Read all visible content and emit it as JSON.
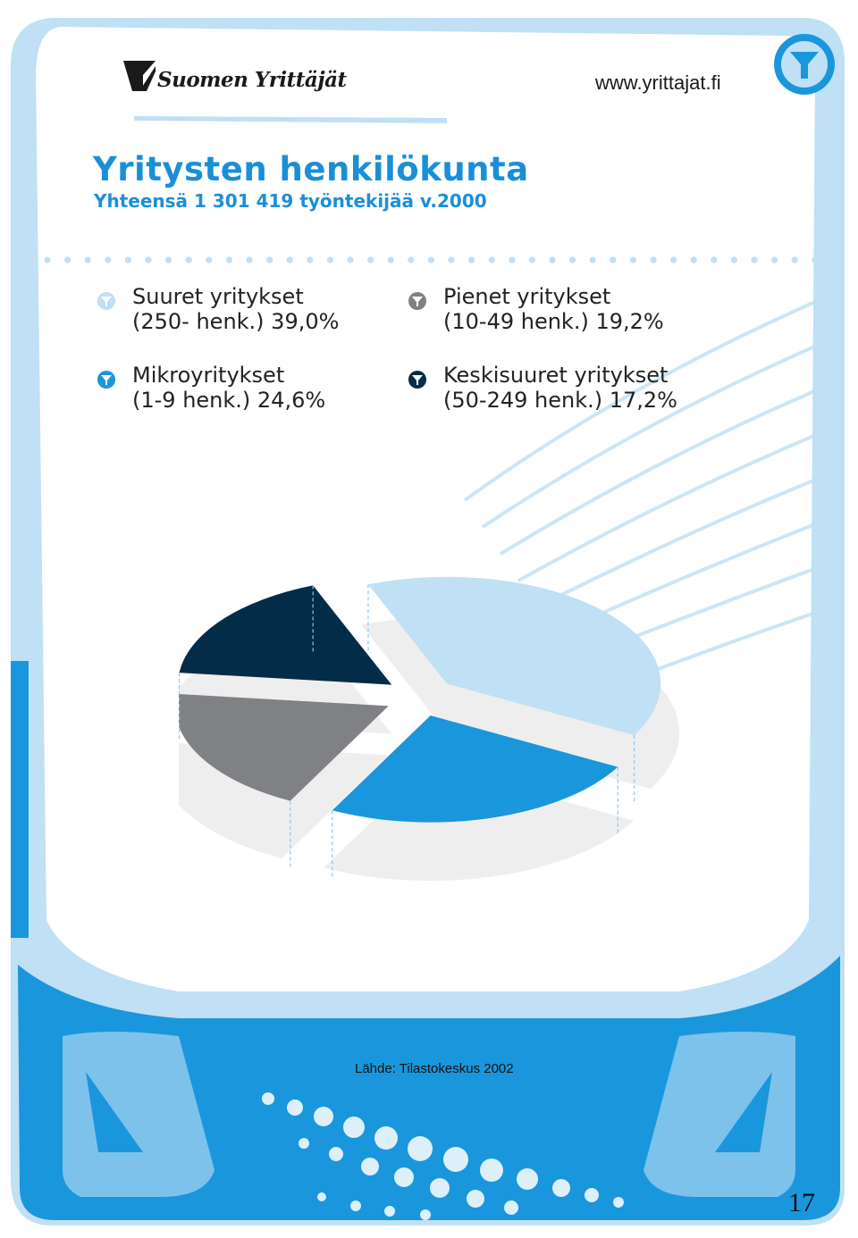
{
  "header": {
    "brand": "Suomen Yrittäjät",
    "website": "www.yrittajat.fi"
  },
  "title": "Yritysten henkilökunta",
  "subtitle": "Yhteensä 1 301 419 työntekijää v.2000",
  "legend": [
    {
      "line1": "Suuret yritykset",
      "line2": "(250- henk.) 39,0%",
      "color": "#bfe0f5"
    },
    {
      "line1": "Pienet yritykset",
      "line2": "(10-49 henk.) 19,2%",
      "color": "#7f8184"
    },
    {
      "line1": "Mikroyritykset",
      "line2": "(1-9 henk.) 24,6%",
      "color": "#1a96dc"
    },
    {
      "line1": "Keskisuuret yritykset",
      "line2": "(50-249 henk.) 17,2%",
      "color": "#022c48"
    }
  ],
  "chart_data": {
    "type": "pie",
    "title": "Yritysten henkilökunta",
    "subtitle": "Yhteensä 1 301 419 työntekijää v.2000",
    "unit": "%",
    "slices": [
      {
        "label": "Suuret yritykset (250- henk.)",
        "value": 39.0,
        "color": "#bfe0f5"
      },
      {
        "label": "Mikroyritykset (1-9 henk.)",
        "value": 24.6,
        "color": "#1a96dc"
      },
      {
        "label": "Pienet yritykset (10-49 henk.)",
        "value": 19.2,
        "color": "#7f8184"
      },
      {
        "label": "Keskisuuret yritykset (50-249 henk.)",
        "value": 17.2,
        "color": "#022c48"
      }
    ]
  },
  "source": "Lähde: Tilastokeskus 2002",
  "page_number": "17",
  "colors": {
    "accent": "#1a8fd8",
    "frame_light": "#bfe0f5",
    "frame_mid": "#1a96dc",
    "plate": "#eeeeef"
  }
}
